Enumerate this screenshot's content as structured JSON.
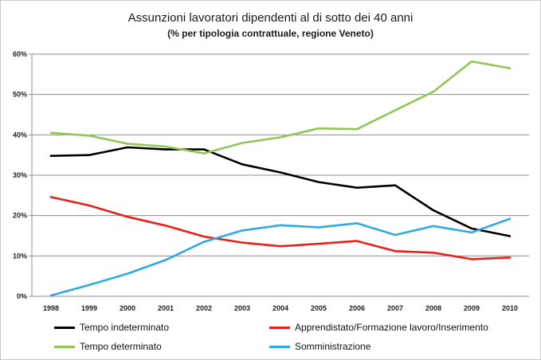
{
  "chart_data": {
    "type": "line",
    "title": "Assunzioni lavoratori dipendenti al di sotto dei 40 anni",
    "subtitle": "(% per tipologia contrattuale, regione Veneto)",
    "xlabel": "",
    "ylabel": "",
    "ylim": [
      0,
      60
    ],
    "yticks": [
      "0%",
      "10%",
      "20%",
      "30%",
      "40%",
      "50%",
      "60%"
    ],
    "grid": true,
    "legend_position": "bottom",
    "x": [
      "1998",
      "1999",
      "2000",
      "2001",
      "2002",
      "2003",
      "2004",
      "2005",
      "2006",
      "2007",
      "2008",
      "2009",
      "2010"
    ],
    "series": [
      {
        "name": "Tempo indeterminato",
        "color": "#000000",
        "values": [
          34.8,
          35.0,
          36.9,
          36.4,
          36.4,
          32.7,
          30.7,
          28.3,
          26.9,
          27.5,
          21.3,
          16.8,
          14.9
        ]
      },
      {
        "name": "Apprendistato/Formazione lavoro/Inserimento",
        "color": "#e8201a",
        "values": [
          24.6,
          22.5,
          19.7,
          17.5,
          14.8,
          13.3,
          12.4,
          13.0,
          13.7,
          11.2,
          10.8,
          9.2,
          9.6
        ]
      },
      {
        "name": "Tempo determinato",
        "color": "#92c556",
        "values": [
          40.5,
          39.8,
          37.8,
          37.1,
          35.4,
          38.0,
          39.4,
          41.6,
          41.4,
          46.1,
          50.7,
          58.2,
          56.5
        ]
      },
      {
        "name": "Somministrazione",
        "color": "#2faae0",
        "values": [
          0.2,
          2.8,
          5.6,
          9.0,
          13.5,
          16.3,
          17.6,
          17.1,
          18.1,
          15.2,
          17.4,
          15.8,
          19.2
        ]
      }
    ]
  }
}
